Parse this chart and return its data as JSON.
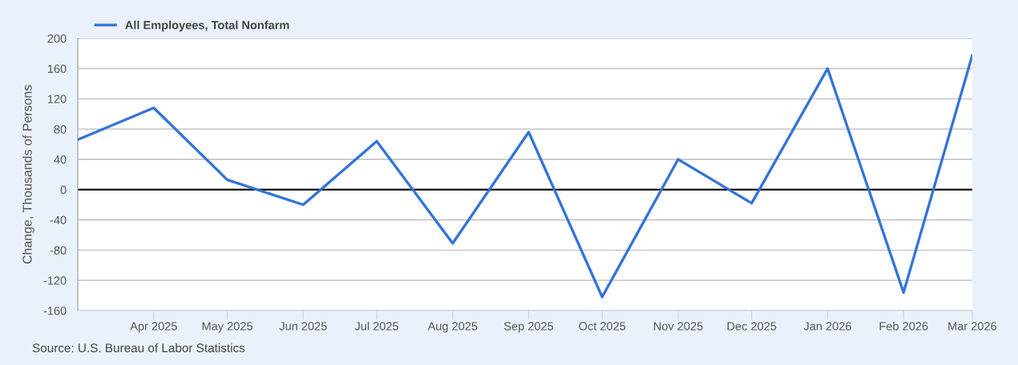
{
  "chart_data": {
    "type": "line",
    "ylabel": "Change, Thousands of Persons",
    "x": [
      "2025-03",
      "2025-04",
      "2025-05",
      "2025-06",
      "2025-07",
      "2025-08",
      "2025-09",
      "2025-10",
      "2025-11",
      "2025-12",
      "2026-01",
      "2026-02",
      "2026-03"
    ],
    "series": [
      {
        "name": "All Employees, Total Nonfarm",
        "color": "#3274d9",
        "values": [
          66,
          108,
          13,
          -20,
          64,
          -71,
          76,
          -142,
          40,
          -18,
          160,
          -136,
          177
        ]
      }
    ],
    "xlim": [
      "2025-03",
      "2026-03"
    ],
    "xticks": [
      {
        "value": "2025-04",
        "label": "Apr 2025"
      },
      {
        "value": "2025-05",
        "label": "May 2025"
      },
      {
        "value": "2025-06",
        "label": "Jun 2025"
      },
      {
        "value": "2025-07",
        "label": "Jul 2025"
      },
      {
        "value": "2025-08",
        "label": "Aug 2025"
      },
      {
        "value": "2025-09",
        "label": "Sep 2025"
      },
      {
        "value": "2025-10",
        "label": "Oct 2025"
      },
      {
        "value": "2025-11",
        "label": "Nov 2025"
      },
      {
        "value": "2025-12",
        "label": "Dec 2025"
      },
      {
        "value": "2026-01",
        "label": "Jan 2026"
      },
      {
        "value": "2026-02",
        "label": "Feb 2026"
      },
      {
        "value": "2026-03",
        "label": "Mar 2026"
      }
    ],
    "ylim": [
      -160,
      200
    ],
    "yticks": [
      -160,
      -120,
      -80,
      -40,
      0,
      40,
      80,
      120,
      160,
      200
    ],
    "ref_lines": [
      {
        "axis": "y",
        "value": 0,
        "color": "#000000"
      }
    ],
    "grid": "y",
    "legend": "top left",
    "marker": "none",
    "line_style": "solid",
    "annotations": [
      "Source: U.S. Bureau of Labor Statistics"
    ]
  }
}
